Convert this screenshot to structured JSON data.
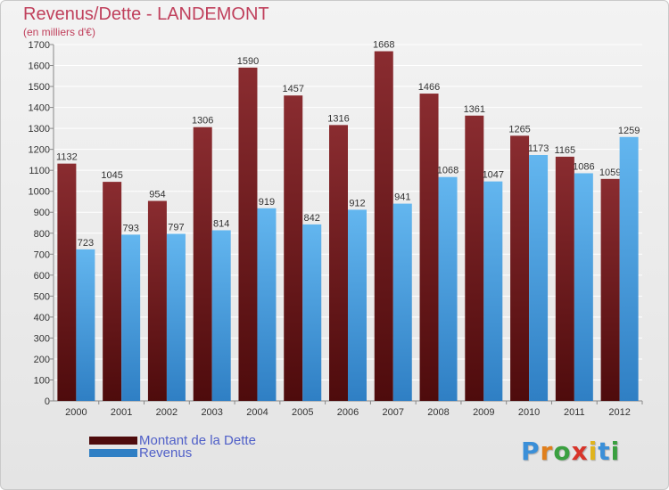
{
  "title": "Revenus/Dette - LANDEMONT",
  "subtitle": "(en milliers d'€)",
  "colors": {
    "dette_top": "#8a2c30",
    "dette_bottom": "#4e0b0c",
    "revenus_top": "#63b6ef",
    "revenus_bottom": "#2f7fc4",
    "title": "#c0405c",
    "legend_text": "#5060c8"
  },
  "chart_data": {
    "type": "bar",
    "categories": [
      "2000",
      "2001",
      "2002",
      "2003",
      "2004",
      "2005",
      "2006",
      "2007",
      "2008",
      "2009",
      "2010",
      "2011",
      "2012"
    ],
    "series": [
      {
        "name": "Montant de la Dette",
        "values": [
          1132,
          1045,
          954,
          1306,
          1590,
          1457,
          1316,
          1668,
          1466,
          1361,
          1265,
          1165,
          1059
        ]
      },
      {
        "name": "Revenus",
        "values": [
          723,
          793,
          797,
          814,
          919,
          842,
          912,
          941,
          1068,
          1047,
          1173,
          1086,
          1259
        ]
      }
    ],
    "ylim": [
      0,
      1700
    ],
    "ytick_step": 100,
    "grid": true,
    "legend_position": "bottom-left"
  },
  "legend": [
    {
      "label": "Montant de la Dette"
    },
    {
      "label": "Revenus"
    }
  ],
  "logo": {
    "letters": [
      {
        "char": "P",
        "color": "#3a8fd8"
      },
      {
        "char": "r",
        "color": "#e07f1c"
      },
      {
        "char": "o",
        "color": "#3aa040"
      },
      {
        "char": "x",
        "color": "#d8342a"
      },
      {
        "char": "i",
        "color": "#e0b41c"
      },
      {
        "char": "t",
        "color": "#3a8fd8"
      },
      {
        "char": "i",
        "color": "#3aa040"
      }
    ]
  }
}
